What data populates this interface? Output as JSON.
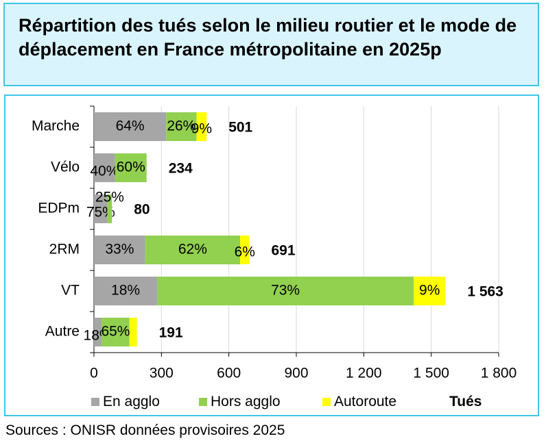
{
  "title": "Répartition des tués selon le milieu routier et le mode de déplacement en France métropolitaine en 2025p",
  "source": "Sources : ONISR données provisoires 2025",
  "colors": {
    "en_agglo": "#a6a6a6",
    "hors_agglo": "#92d050",
    "autoroute": "#ffff00",
    "frame": "#3fc5ea",
    "title_bg": "#d9f4fd",
    "grid": "#d9d9d9"
  },
  "legend": {
    "en_agglo": "En agglo",
    "hors_agglo": "Hors agglo",
    "autoroute": "Autoroute",
    "total": "Tués"
  },
  "chart_data": {
    "type": "bar",
    "orientation": "horizontal",
    "stacked": true,
    "categories": [
      "Marche",
      "Vélo",
      "EDPm",
      "2RM",
      "VT",
      "Autre"
    ],
    "series": [
      {
        "name": "En agglo",
        "values": [
          321,
          94,
          60,
          228,
          281,
          34
        ],
        "labels": [
          "64%",
          "40%",
          "75%",
          "33%",
          "18%",
          "18%"
        ]
      },
      {
        "name": "Hors agglo",
        "values": [
          135,
          140,
          20,
          422,
          1141,
          124
        ],
        "labels": [
          "26%",
          "60%",
          "25%",
          "62%",
          "73%",
          "65%"
        ]
      },
      {
        "name": "Autoroute",
        "values": [
          45,
          0,
          0,
          41,
          141,
          33
        ],
        "labels": [
          "9%",
          "",
          "",
          "6%",
          "9%",
          ""
        ]
      }
    ],
    "totals": [
      501,
      234,
      80,
      691,
      1563,
      191
    ],
    "total_labels": [
      "501",
      "234",
      "80",
      "691",
      "1 563",
      "191"
    ],
    "x_ticks": [
      0,
      300,
      600,
      900,
      1200,
      1500,
      1800
    ],
    "x_tick_labels": [
      "0",
      "300",
      "600",
      "900",
      "1 200",
      "1 500",
      "1 800"
    ],
    "xlim": [
      0,
      1800
    ],
    "grid": true,
    "legend_position": "bottom"
  }
}
